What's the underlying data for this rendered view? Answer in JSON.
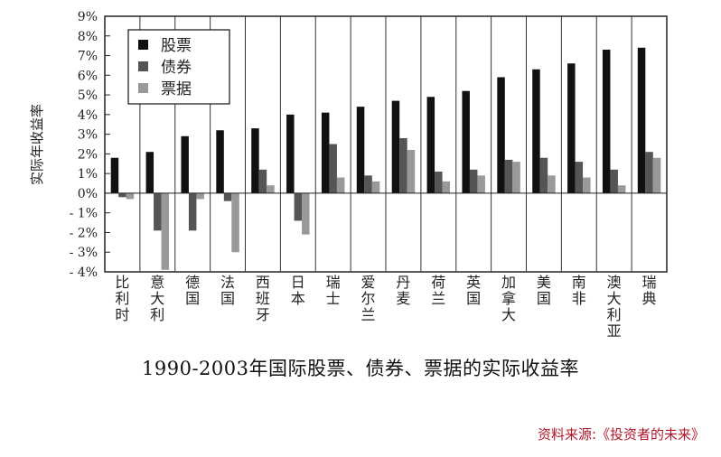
{
  "caption": "1990-2003年国际股票、债券、票据的实际收益率",
  "source": "资料来源:《投资者的未来》",
  "chart_data": {
    "type": "bar",
    "title": "",
    "xlabel": "",
    "ylabel": "实际年收益率",
    "ylim": [
      -4,
      9
    ],
    "y_ticks": [
      -4,
      -3,
      -2,
      -1,
      0,
      1,
      2,
      3,
      4,
      5,
      6,
      7,
      8,
      9
    ],
    "y_tick_suffix": "%",
    "grid": "vertical separators between categories",
    "legend_position": "top-left",
    "categories": [
      "比利时",
      "意大利",
      "德国",
      "法国",
      "西班牙",
      "日本",
      "瑞士",
      "爱尔兰",
      "丹麦",
      "荷兰",
      "英国",
      "加拿大",
      "美国",
      "南非",
      "澳大利亚",
      "瑞典"
    ],
    "series": [
      {
        "name": "股票",
        "color": "#111111",
        "values": [
          1.8,
          2.1,
          2.9,
          3.2,
          3.3,
          4.0,
          4.1,
          4.4,
          4.7,
          4.9,
          5.2,
          5.9,
          6.3,
          6.6,
          7.3,
          7.4
        ]
      },
      {
        "name": "债券",
        "color": "#555555",
        "values": [
          -0.2,
          -1.9,
          -1.9,
          -0.4,
          1.2,
          -1.4,
          2.5,
          0.9,
          2.8,
          1.1,
          1.2,
          1.7,
          1.8,
          1.6,
          1.2,
          2.1
        ]
      },
      {
        "name": "票据",
        "color": "#999999",
        "values": [
          -0.3,
          -3.9,
          -0.3,
          -3.0,
          0.4,
          -2.1,
          0.8,
          0.6,
          2.2,
          0.6,
          0.9,
          1.6,
          0.9,
          0.8,
          0.4,
          1.8
        ]
      }
    ]
  }
}
